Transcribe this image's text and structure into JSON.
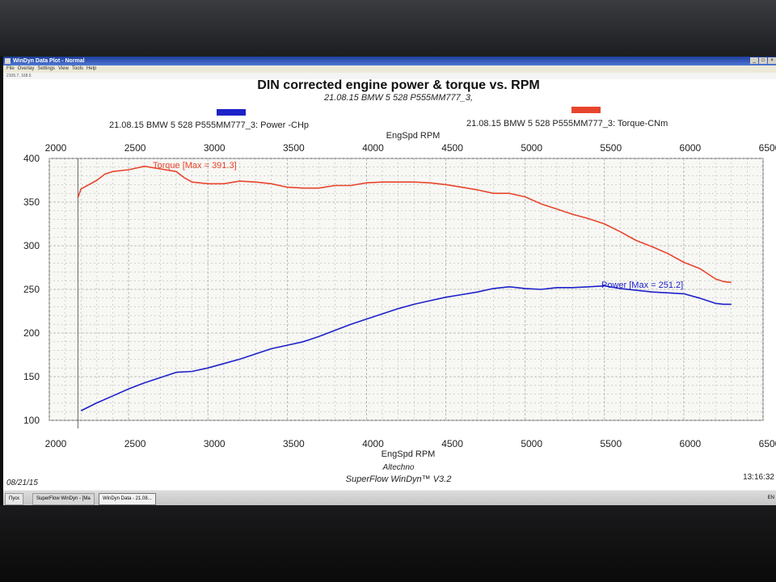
{
  "window": {
    "title": "WinDyn Data Plot - Normal",
    "menu": [
      "File",
      "Overlay",
      "Settings",
      "View",
      "Tools",
      "Help"
    ],
    "toolbar_text": "2105.7, 168.5"
  },
  "header": {
    "title": "DIN corrected engine power & torque vs. RPM",
    "run_name": "21.08.15 BMW 5 528 P555MM777_3,"
  },
  "legend": {
    "power": "21.08.15 BMW 5 528 P555MM777_3: Power -CHp",
    "torque": "21.08.15 BMW 5 528 P555MM777_3: Torque-CNm"
  },
  "footer": {
    "date": "08/21/15",
    "company": "Altechno",
    "software": "SuperFlow WinDyn™ V3.2",
    "time": "13:16:32"
  },
  "taskbar": {
    "start": "Пуск",
    "tasks": [
      "SuperFlow WinDyn - [Ma",
      "WinDyn Data - 21.08..."
    ],
    "tray": "EN"
  },
  "colors": {
    "torque": "#e8452c",
    "power": "#1d21c9",
    "grid": "#a9a9a9",
    "axis_text": "#222222"
  },
  "chart_data": {
    "type": "line",
    "xlabel": "EngSpd RPM",
    "ylabel": "",
    "xlim": [
      2000,
      6500
    ],
    "ylim": [
      100,
      400
    ],
    "x_ticks": [
      2000,
      2500,
      3000,
      3500,
      4000,
      4500,
      5000,
      5500,
      6000,
      6500
    ],
    "y_ticks": [
      100,
      150,
      200,
      250,
      300,
      350,
      400
    ],
    "grid": true,
    "series": [
      {
        "name": "Torque",
        "annotation": "Torque [Max = 391.3]",
        "color": "#e8452c",
        "points": [
          [
            2180,
            355
          ],
          [
            2200,
            365
          ],
          [
            2300,
            375
          ],
          [
            2350,
            382
          ],
          [
            2400,
            385
          ],
          [
            2500,
            387
          ],
          [
            2600,
            391
          ],
          [
            2700,
            388
          ],
          [
            2800,
            385
          ],
          [
            2850,
            378
          ],
          [
            2900,
            373
          ],
          [
            3000,
            371
          ],
          [
            3100,
            371
          ],
          [
            3200,
            374
          ],
          [
            3300,
            373
          ],
          [
            3400,
            371
          ],
          [
            3500,
            367
          ],
          [
            3600,
            366
          ],
          [
            3700,
            366
          ],
          [
            3800,
            369
          ],
          [
            3900,
            369
          ],
          [
            4000,
            372
          ],
          [
            4100,
            373
          ],
          [
            4300,
            373
          ],
          [
            4400,
            372
          ],
          [
            4500,
            370
          ],
          [
            4600,
            367
          ],
          [
            4700,
            364
          ],
          [
            4800,
            360
          ],
          [
            4900,
            360
          ],
          [
            5000,
            356
          ],
          [
            5100,
            348
          ],
          [
            5200,
            342
          ],
          [
            5300,
            336
          ],
          [
            5400,
            331
          ],
          [
            5500,
            325
          ],
          [
            5600,
            316
          ],
          [
            5700,
            306
          ],
          [
            5800,
            299
          ],
          [
            5900,
            291
          ],
          [
            6000,
            281
          ],
          [
            6100,
            274
          ],
          [
            6200,
            262
          ],
          [
            6250,
            259
          ],
          [
            6300,
            258
          ]
        ]
      },
      {
        "name": "Power",
        "annotation": "Power  [Max = 251.2]",
        "color": "#1d21c9",
        "points": [
          [
            2200,
            111
          ],
          [
            2300,
            120
          ],
          [
            2400,
            128
          ],
          [
            2500,
            136
          ],
          [
            2600,
            143
          ],
          [
            2700,
            149
          ],
          [
            2800,
            155
          ],
          [
            2900,
            156
          ],
          [
            3000,
            160
          ],
          [
            3100,
            165
          ],
          [
            3200,
            170
          ],
          [
            3300,
            176
          ],
          [
            3400,
            182
          ],
          [
            3500,
            186
          ],
          [
            3600,
            190
          ],
          [
            3700,
            196
          ],
          [
            3800,
            203
          ],
          [
            3900,
            210
          ],
          [
            4000,
            216
          ],
          [
            4100,
            222
          ],
          [
            4200,
            228
          ],
          [
            4300,
            233
          ],
          [
            4400,
            237
          ],
          [
            4500,
            241
          ],
          [
            4600,
            244
          ],
          [
            4700,
            247
          ],
          [
            4800,
            251
          ],
          [
            4900,
            253
          ],
          [
            5000,
            251
          ],
          [
            5100,
            250
          ],
          [
            5200,
            252
          ],
          [
            5300,
            252
          ],
          [
            5400,
            253
          ],
          [
            5500,
            254
          ],
          [
            5600,
            251
          ],
          [
            5700,
            249
          ],
          [
            5800,
            247
          ],
          [
            5900,
            246
          ],
          [
            6000,
            245
          ],
          [
            6100,
            240
          ],
          [
            6200,
            234
          ],
          [
            6250,
            233
          ],
          [
            6300,
            233
          ]
        ]
      }
    ]
  }
}
